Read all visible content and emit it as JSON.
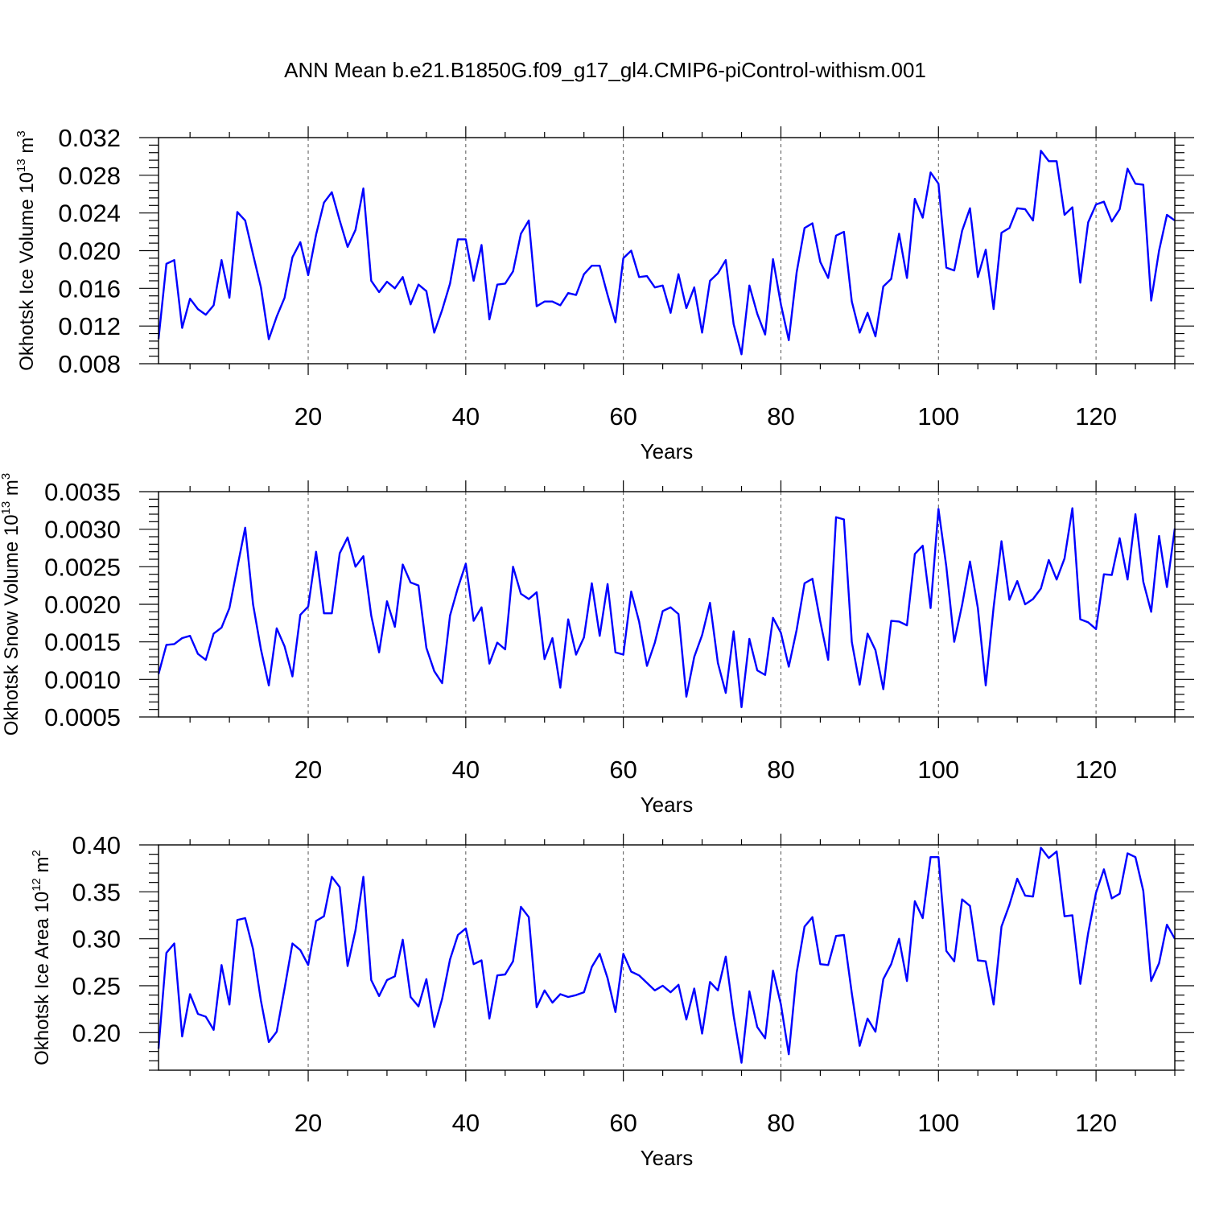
{
  "title": "ANN Mean b.e21.B1850G.f09_g17_gl4.CMIP6-piControl-withism.001",
  "colors": {
    "line": "#0000ff",
    "axis": "#000000",
    "grid": "#555555"
  },
  "chart_data": [
    {
      "type": "line",
      "xlabel": "Years",
      "ylabel": {
        "main": "Okhotsk Ice Volume 10",
        "exp": "13",
        "unit": " m",
        "unit_exp": "3"
      },
      "xlim": [
        1,
        130
      ],
      "ylim": [
        0.008,
        0.032
      ],
      "xticks": [
        20,
        40,
        60,
        80,
        100,
        120
      ],
      "xtick_labels": [
        "20",
        "40",
        "60",
        "80",
        "100",
        "120"
      ],
      "yticks": [
        0.008,
        0.012,
        0.016,
        0.02,
        0.024,
        0.028,
        0.032
      ],
      "ytick_labels": [
        "0.008",
        "0.012",
        "0.016",
        "0.020",
        "0.024",
        "0.028",
        "0.032"
      ],
      "grid": "vertical dashed at x major ticks",
      "x_start": 1,
      "values": [
        0.0106,
        0.0186,
        0.019,
        0.0118,
        0.0149,
        0.0138,
        0.0132,
        0.0142,
        0.019,
        0.015,
        0.0241,
        0.0232,
        0.0196,
        0.0161,
        0.0106,
        0.013,
        0.015,
        0.0193,
        0.0209,
        0.0174,
        0.0217,
        0.0251,
        0.0262,
        0.0232,
        0.0204,
        0.0222,
        0.0266,
        0.0168,
        0.0156,
        0.0167,
        0.016,
        0.0172,
        0.0143,
        0.0164,
        0.0157,
        0.0113,
        0.0137,
        0.0165,
        0.0212,
        0.0212,
        0.0168,
        0.0206,
        0.0127,
        0.0164,
        0.0165,
        0.0178,
        0.0218,
        0.0232,
        0.0141,
        0.0146,
        0.0146,
        0.0142,
        0.0155,
        0.0153,
        0.0175,
        0.0184,
        0.0184,
        0.0153,
        0.0124,
        0.0192,
        0.02,
        0.0172,
        0.0173,
        0.0161,
        0.0163,
        0.0134,
        0.0175,
        0.0139,
        0.0161,
        0.0113,
        0.0168,
        0.0176,
        0.019,
        0.0122,
        0.009,
        0.0163,
        0.0133,
        0.0111,
        0.0191,
        0.0143,
        0.0105,
        0.0177,
        0.0224,
        0.0229,
        0.0188,
        0.0171,
        0.0216,
        0.022,
        0.0146,
        0.0113,
        0.0134,
        0.0109,
        0.0162,
        0.017,
        0.0218,
        0.0171,
        0.0255,
        0.0235,
        0.0283,
        0.0271,
        0.0182,
        0.0179,
        0.0221,
        0.0245,
        0.0172,
        0.0201,
        0.0138,
        0.0219,
        0.0224,
        0.0245,
        0.0244,
        0.0232,
        0.0306,
        0.0295,
        0.0295,
        0.0238,
        0.0246,
        0.0166,
        0.023,
        0.0249,
        0.0252,
        0.0231,
        0.0244,
        0.0287,
        0.0271,
        0.027,
        0.0147,
        0.02,
        0.0238,
        0.0232
      ]
    },
    {
      "type": "line",
      "xlabel": "Years",
      "ylabel": {
        "main": "Okhotsk Snow Volume 10",
        "exp": "13",
        "unit": " m",
        "unit_exp": "3"
      },
      "xlim": [
        1,
        130
      ],
      "ylim": [
        0.0005,
        0.0035
      ],
      "xticks": [
        20,
        40,
        60,
        80,
        100,
        120
      ],
      "xtick_labels": [
        "20",
        "40",
        "60",
        "80",
        "100",
        "120"
      ],
      "yticks": [
        0.0005,
        0.001,
        0.0015,
        0.002,
        0.0025,
        0.003,
        0.0035
      ],
      "ytick_labels": [
        "0.0005",
        "0.0010",
        "0.0015",
        "0.0020",
        "0.0025",
        "0.0030",
        "0.0035"
      ],
      "grid": "vertical dashed at x major ticks",
      "x_start": 1,
      "values": [
        0.00107,
        0.00146,
        0.00147,
        0.00155,
        0.00158,
        0.00134,
        0.00126,
        0.00161,
        0.00169,
        0.00195,
        0.00249,
        0.00302,
        0.002,
        0.0014,
        0.00092,
        0.00168,
        0.00144,
        0.00104,
        0.00186,
        0.00197,
        0.0027,
        0.00188,
        0.00188,
        0.00268,
        0.00289,
        0.0025,
        0.00264,
        0.00185,
        0.00136,
        0.00204,
        0.0017,
        0.00253,
        0.00229,
        0.00225,
        0.00142,
        0.00111,
        0.00095,
        0.00185,
        0.00222,
        0.00254,
        0.00178,
        0.00196,
        0.00121,
        0.00149,
        0.0014,
        0.0025,
        0.00214,
        0.00207,
        0.00216,
        0.00127,
        0.00155,
        0.00089,
        0.0018,
        0.00133,
        0.00156,
        0.00228,
        0.00158,
        0.00227,
        0.00136,
        0.00133,
        0.00217,
        0.00177,
        0.00118,
        0.00149,
        0.00191,
        0.00196,
        0.00187,
        0.00077,
        0.0013,
        0.00159,
        0.00202,
        0.00122,
        0.00082,
        0.00164,
        0.00063,
        0.00154,
        0.00112,
        0.00106,
        0.00182,
        0.00162,
        0.00117,
        0.00166,
        0.00228,
        0.00234,
        0.00177,
        0.00126,
        0.00316,
        0.00313,
        0.0015,
        0.00093,
        0.00161,
        0.00139,
        0.00087,
        0.00178,
        0.00177,
        0.00172,
        0.00267,
        0.00278,
        0.00195,
        0.00327,
        0.0025,
        0.0015,
        0.00199,
        0.00257,
        0.00195,
        0.00092,
        0.00196,
        0.00284,
        0.00206,
        0.00231,
        0.002,
        0.00207,
        0.00221,
        0.00259,
        0.00233,
        0.00261,
        0.00328,
        0.0018,
        0.00176,
        0.00167,
        0.0024,
        0.00239,
        0.00288,
        0.00233,
        0.0032,
        0.0023,
        0.0019,
        0.00291,
        0.00223,
        0.00301
      ]
    },
    {
      "type": "line",
      "xlabel": "Years",
      "ylabel": {
        "main": "Okhotsk Ice Area 10",
        "exp": "12",
        "unit": " m",
        "unit_exp": "2"
      },
      "xlim": [
        1,
        130
      ],
      "ylim": [
        0.16,
        0.4
      ],
      "xticks": [
        20,
        40,
        60,
        80,
        100,
        120
      ],
      "xtick_labels": [
        "20",
        "40",
        "60",
        "80",
        "100",
        "120"
      ],
      "yticks": [
        0.2,
        0.25,
        0.3,
        0.35,
        0.4
      ],
      "ytick_labels": [
        "0.20",
        "0.25",
        "0.30",
        "0.35",
        "0.40"
      ],
      "grid": "vertical dashed at x major ticks",
      "x_start": 1,
      "values": [
        0.183,
        0.285,
        0.295,
        0.196,
        0.241,
        0.22,
        0.217,
        0.203,
        0.272,
        0.23,
        0.32,
        0.322,
        0.289,
        0.234,
        0.19,
        0.201,
        0.247,
        0.295,
        0.288,
        0.272,
        0.319,
        0.324,
        0.366,
        0.355,
        0.271,
        0.309,
        0.366,
        0.256,
        0.239,
        0.256,
        0.26,
        0.299,
        0.238,
        0.228,
        0.257,
        0.206,
        0.236,
        0.278,
        0.304,
        0.311,
        0.273,
        0.277,
        0.215,
        0.261,
        0.262,
        0.276,
        0.334,
        0.323,
        0.227,
        0.245,
        0.232,
        0.241,
        0.238,
        0.24,
        0.243,
        0.27,
        0.284,
        0.258,
        0.222,
        0.284,
        0.265,
        0.261,
        0.253,
        0.245,
        0.25,
        0.243,
        0.251,
        0.214,
        0.247,
        0.199,
        0.254,
        0.245,
        0.281,
        0.218,
        0.168,
        0.244,
        0.206,
        0.194,
        0.266,
        0.23,
        0.177,
        0.264,
        0.313,
        0.323,
        0.273,
        0.272,
        0.303,
        0.304,
        0.242,
        0.186,
        0.215,
        0.201,
        0.257,
        0.273,
        0.3,
        0.255,
        0.34,
        0.322,
        0.387,
        0.387,
        0.287,
        0.276,
        0.342,
        0.335,
        0.277,
        0.276,
        0.23,
        0.313,
        0.336,
        0.364,
        0.346,
        0.345,
        0.397,
        0.386,
        0.393,
        0.324,
        0.325,
        0.252,
        0.306,
        0.349,
        0.374,
        0.343,
        0.348,
        0.391,
        0.387,
        0.351,
        0.255,
        0.274,
        0.315,
        0.3
      ]
    }
  ]
}
